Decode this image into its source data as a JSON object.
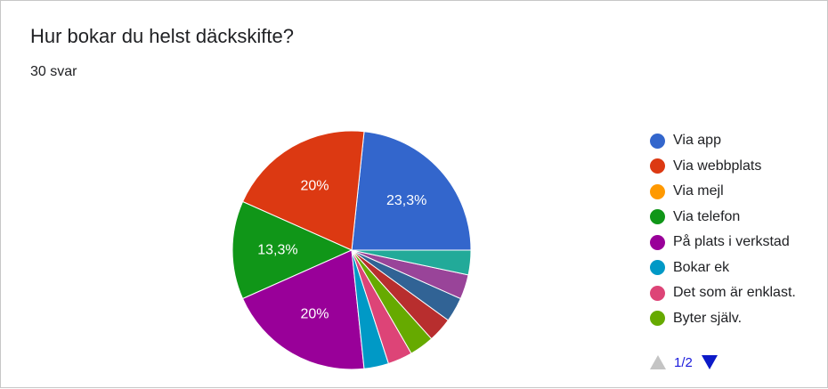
{
  "header": {
    "title": "Hur bokar du helst däckskifte?",
    "response_count": "30 svar"
  },
  "pager": {
    "page_label": "1/2",
    "prev_icon": "triangle-up-icon",
    "next_icon": "triangle-down-icon"
  },
  "chart_data": {
    "type": "pie",
    "total_responses": 30,
    "start": "3 o'clock, counter-clockwise",
    "slices": [
      {
        "name": "Via app",
        "value": 7,
        "label": "23,3%",
        "color": "#3366cc"
      },
      {
        "name": "Via webbplats",
        "value": 6,
        "label": "20%",
        "color": "#dc3912"
      },
      {
        "name": "Via mejl",
        "value": 0,
        "label": "",
        "color": "#ff9900"
      },
      {
        "name": "Via telefon",
        "value": 4,
        "label": "13,3%",
        "color": "#109618"
      },
      {
        "name": "På plats i verkstad",
        "value": 6,
        "label": "20%",
        "color": "#990099"
      },
      {
        "name": "Bokar ek",
        "value": 1,
        "label": "",
        "color": "#0099c6"
      },
      {
        "name": "Det som är enklast.",
        "value": 1,
        "label": "",
        "color": "#dd4477"
      },
      {
        "name": "Byter själv.",
        "value": 1,
        "label": "",
        "color": "#66aa00"
      },
      {
        "name": "",
        "value": 1,
        "label": "",
        "color": "#b82e2e"
      },
      {
        "name": "",
        "value": 1,
        "label": "",
        "color": "#316395"
      },
      {
        "name": "",
        "value": 1,
        "label": "",
        "color": "#994499"
      },
      {
        "name": "",
        "value": 1,
        "label": "",
        "color": "#22aa99"
      }
    ],
    "legend_position": "right",
    "legend_visible_count": 8
  }
}
